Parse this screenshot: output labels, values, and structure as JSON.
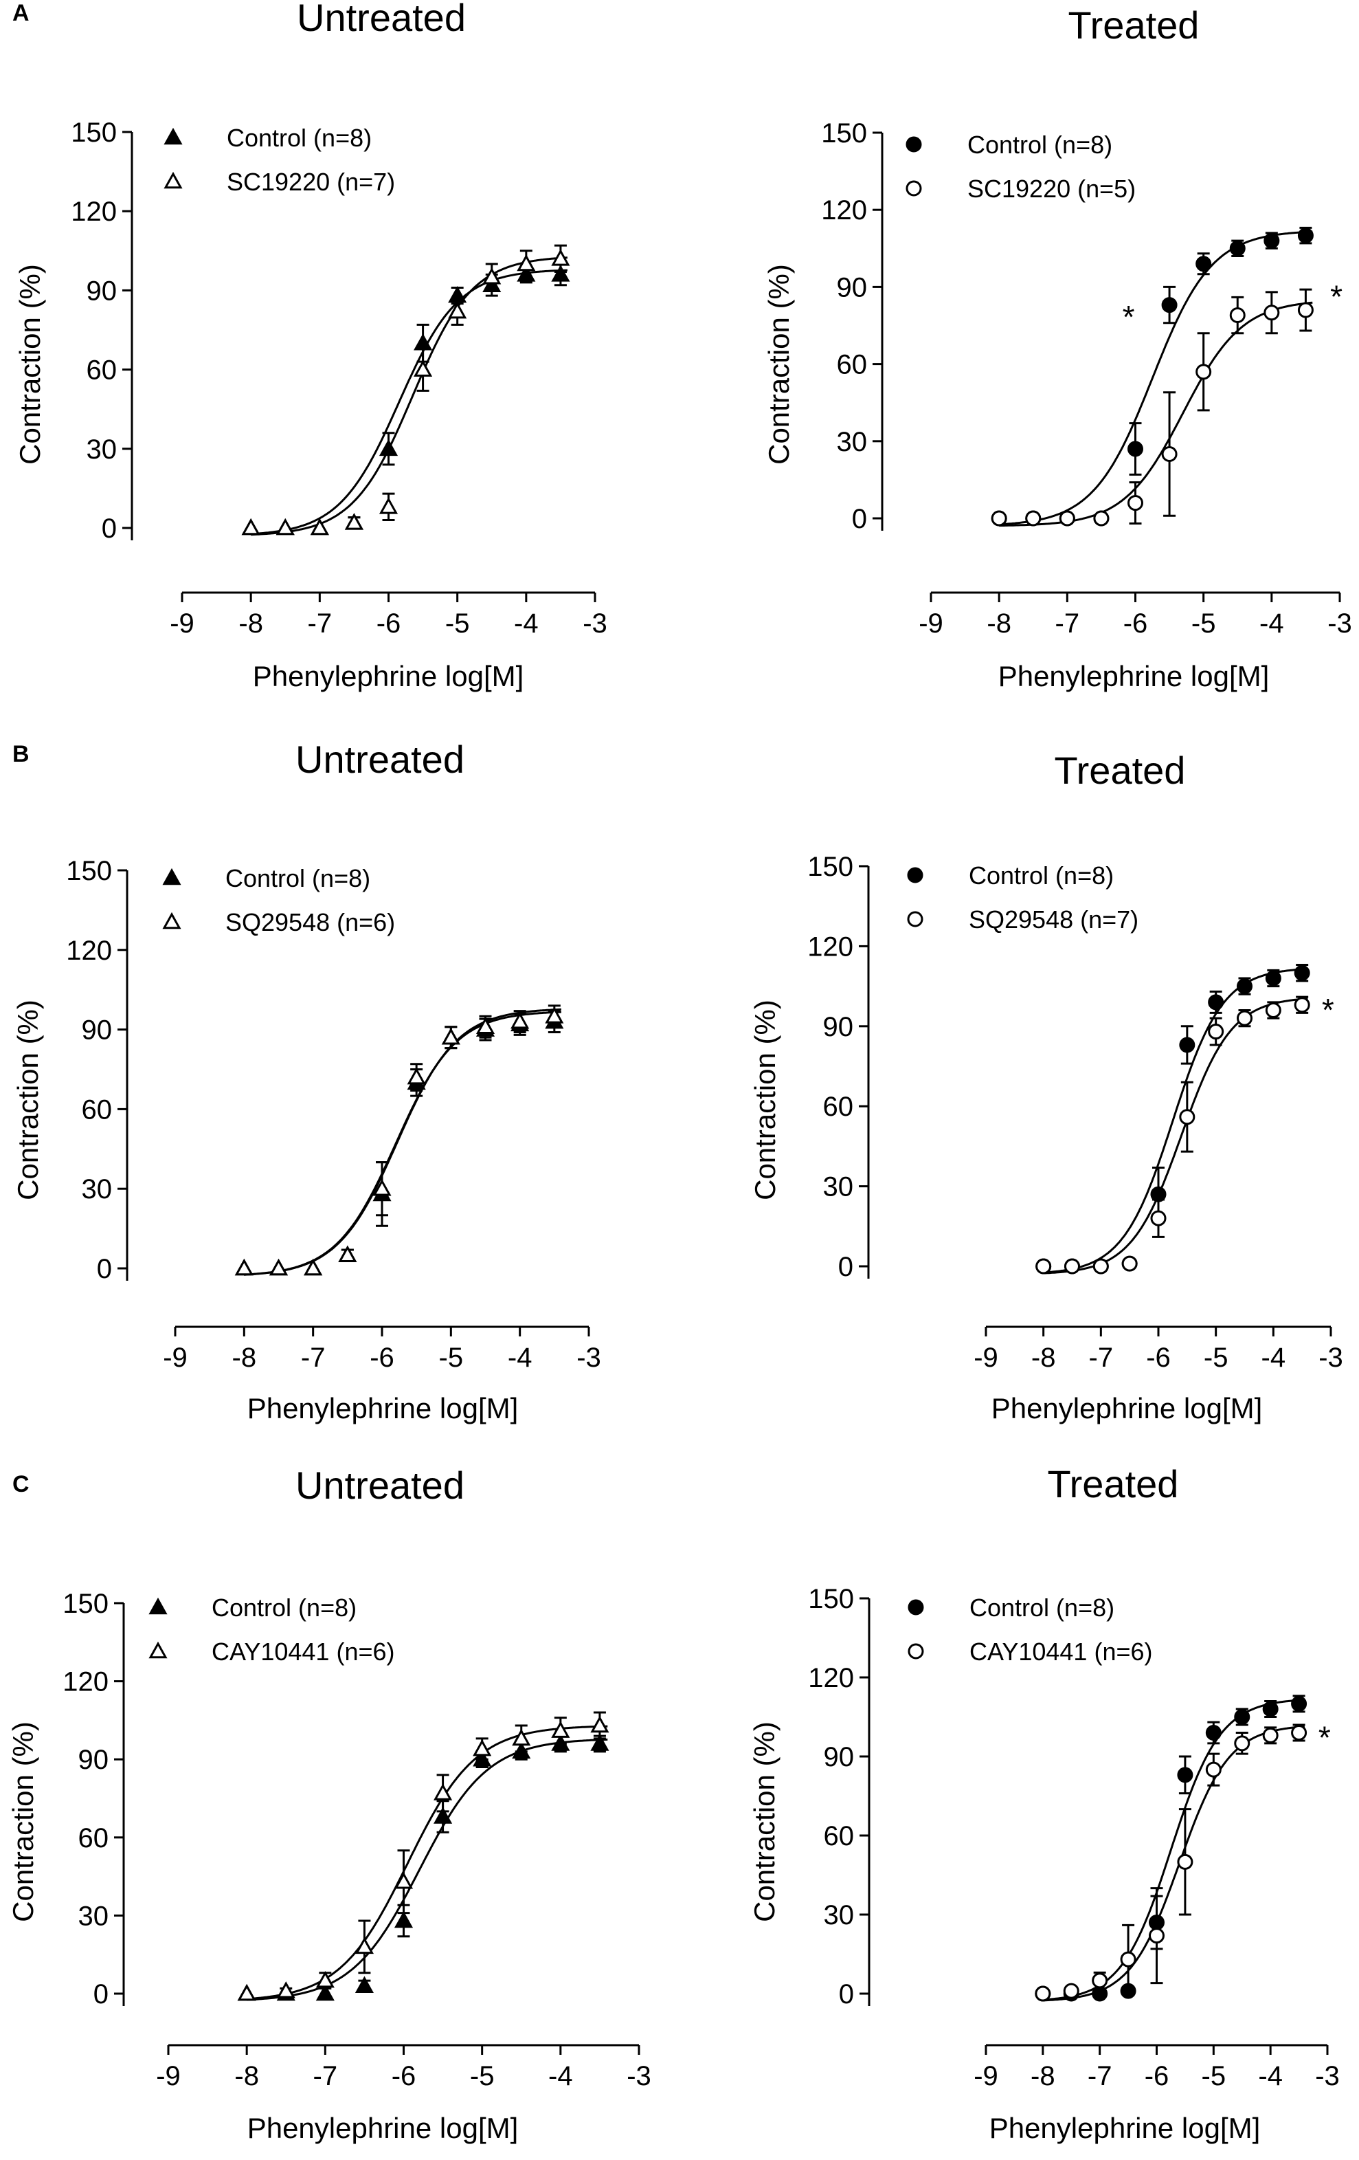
{
  "chart_data": [
    {
      "panel_label": "A",
      "title": "Untreated",
      "type": "scatter",
      "xlabel": "Phenylephrine log[M]",
      "ylabel": "Contraction (%)",
      "xlim": [
        -9,
        -3
      ],
      "ylim": [
        0,
        150
      ],
      "xticks": [
        "-9",
        "-8",
        "-7",
        "-6",
        "-5",
        "-4",
        "-3"
      ],
      "yticks": [
        "0",
        "30",
        "60",
        "90",
        "120",
        "150"
      ],
      "legend_position": "top-left",
      "significance_marks": [],
      "series": [
        {
          "name": "Control (n=8)",
          "marker": "triangle-filled",
          "x": [
            -8,
            -7.5,
            -7,
            -6.5,
            -6,
            -5.5,
            -5,
            -4.5,
            -4,
            -3.5
          ],
          "y": [
            0,
            0,
            0,
            2,
            30,
            70,
            88,
            92,
            96,
            96
          ],
          "err": [
            0,
            0,
            0,
            2,
            6,
            7,
            3,
            4,
            3,
            4
          ],
          "fit": {
            "bottom": -3,
            "top": 98,
            "logEC50": -5.85,
            "hill": 1
          }
        },
        {
          "name": "SC19220 (n=7)",
          "marker": "triangle-open",
          "x": [
            -8,
            -7.5,
            -7,
            -6.5,
            -6,
            -5.5,
            -5,
            -4.5,
            -4,
            -3.5
          ],
          "y": [
            0,
            0,
            0,
            2,
            8,
            60,
            82,
            95,
            100,
            102
          ],
          "err": [
            0,
            0,
            0,
            2,
            5,
            8,
            5,
            5,
            5,
            5
          ],
          "fit": {
            "bottom": -3,
            "top": 103,
            "logEC50": -5.65,
            "hill": 1
          }
        }
      ]
    },
    {
      "panel_label": "",
      "title": "Treated",
      "type": "scatter",
      "xlabel": "Phenylephrine log[M]",
      "ylabel": "Contraction (%)",
      "xlim": [
        -9,
        -3
      ],
      "ylim": [
        0,
        150
      ],
      "xticks": [
        "-9",
        "-8",
        "-7",
        "-6",
        "-5",
        "-4",
        "-3"
      ],
      "yticks": [
        "0",
        "30",
        "60",
        "90",
        "120",
        "150"
      ],
      "legend_position": "top-left",
      "significance_marks": [
        {
          "x": -6.1,
          "y": 74
        },
        {
          "x": -3.05,
          "y": 82
        }
      ],
      "series": [
        {
          "name": "Control (n=8)",
          "marker": "circle-filled",
          "x": [
            -8,
            -7.5,
            -7,
            -6.5,
            -6,
            -5.5,
            -5,
            -4.5,
            -4,
            -3.5
          ],
          "y": [
            0,
            0,
            0,
            0,
            27,
            83,
            99,
            105,
            108,
            110
          ],
          "err": [
            0,
            0,
            0,
            0,
            10,
            7,
            4,
            3,
            3,
            3
          ],
          "fit": {
            "bottom": -3,
            "top": 112,
            "logEC50": -5.75,
            "hill": 1
          }
        },
        {
          "name": "SC19220 (n=5)",
          "marker": "circle-open",
          "x": [
            -8,
            -7.5,
            -7,
            -6.5,
            -6,
            -5.5,
            -5,
            -4.5,
            -4,
            -3.5
          ],
          "y": [
            0,
            0,
            0,
            0,
            6,
            25,
            57,
            79,
            80,
            81
          ],
          "err": [
            0,
            0,
            0,
            0,
            8,
            24,
            15,
            7,
            8,
            8
          ],
          "fit": {
            "bottom": -3,
            "top": 85,
            "logEC50": -5.3,
            "hill": 1
          }
        }
      ]
    },
    {
      "panel_label": "B",
      "title": "Untreated",
      "type": "scatter",
      "xlabel": "Phenylephrine log[M]",
      "ylabel": "Contraction (%)",
      "xlim": [
        -9,
        -3
      ],
      "ylim": [
        0,
        150
      ],
      "xticks": [
        "-9",
        "-8",
        "-7",
        "-6",
        "-5",
        "-4",
        "-3"
      ],
      "yticks": [
        "0",
        "30",
        "60",
        "90",
        "120",
        "150"
      ],
      "legend_position": "top-left",
      "significance_marks": [],
      "series": [
        {
          "name": "Control (n=8)",
          "marker": "triangle-filled",
          "x": [
            -8,
            -7.5,
            -7,
            -6.5,
            -6,
            -5.5,
            -5,
            -4.5,
            -4,
            -3.5
          ],
          "y": [
            0,
            0,
            0,
            5,
            28,
            70,
            87,
            90,
            92,
            93
          ],
          "err": [
            0,
            0,
            0,
            2,
            12,
            5,
            4,
            4,
            4,
            4
          ],
          "fit": {
            "bottom": -3,
            "top": 97,
            "logEC50": -5.8,
            "hill": 1
          }
        },
        {
          "name": "SQ29548 (n=6)",
          "marker": "triangle-open",
          "x": [
            -8,
            -7.5,
            -7,
            -6.5,
            -6,
            -5.5,
            -5,
            -4.5,
            -4,
            -3.5
          ],
          "y": [
            0,
            0,
            0,
            5,
            30,
            72,
            87,
            91,
            93,
            95
          ],
          "err": [
            0,
            0,
            0,
            2,
            10,
            5,
            4,
            4,
            4,
            4
          ],
          "fit": {
            "bottom": -3,
            "top": 98,
            "logEC50": -5.78,
            "hill": 1
          }
        }
      ]
    },
    {
      "panel_label": "",
      "title": "Treated",
      "type": "scatter",
      "xlabel": "Phenylephrine log[M]",
      "ylabel": "Contraction (%)",
      "xlim": [
        -9,
        -3
      ],
      "ylim": [
        0,
        150
      ],
      "xticks": [
        "-9",
        "-8",
        "-7",
        "-6",
        "-5",
        "-4",
        "-3"
      ],
      "yticks": [
        "0",
        "30",
        "60",
        "90",
        "120",
        "150"
      ],
      "legend_position": "top-left",
      "significance_marks": [
        {
          "x": -3.05,
          "y": 92
        }
      ],
      "series": [
        {
          "name": "Control (n=8)",
          "marker": "circle-filled",
          "x": [
            -8,
            -7.5,
            -7,
            -6.5,
            -6,
            -5.5,
            -5,
            -4.5,
            -4,
            -3.5
          ],
          "y": [
            0,
            0,
            0,
            1,
            27,
            83,
            99,
            105,
            108,
            110
          ],
          "err": [
            0,
            0,
            0,
            0,
            10,
            7,
            4,
            3,
            3,
            3
          ],
          "fit": {
            "bottom": -3,
            "top": 112,
            "logEC50": -5.75,
            "hill": 1
          }
        },
        {
          "name": "SQ29548 (n=7)",
          "marker": "circle-open",
          "x": [
            -8,
            -7.5,
            -7,
            -6.5,
            -6,
            -5.5,
            -5,
            -4.5,
            -4,
            -3.5
          ],
          "y": [
            0,
            0,
            0,
            1,
            18,
            56,
            88,
            93,
            96,
            98
          ],
          "err": [
            0,
            0,
            0,
            0,
            7,
            13,
            5,
            3,
            3,
            3
          ],
          "fit": {
            "bottom": -3,
            "top": 101,
            "logEC50": -5.6,
            "hill": 1
          }
        }
      ]
    },
    {
      "panel_label": "C",
      "title": "Untreated",
      "type": "scatter",
      "xlabel": "Phenylephrine log[M]",
      "ylabel": "Contraction (%)",
      "xlim": [
        -9,
        -3
      ],
      "ylim": [
        0,
        150
      ],
      "xticks": [
        "-9",
        "-8",
        "-7",
        "-6",
        "-5",
        "-4",
        "-3"
      ],
      "yticks": [
        "0",
        "30",
        "60",
        "90",
        "120",
        "150"
      ],
      "legend_position": "top-left",
      "significance_marks": [],
      "series": [
        {
          "name": "Control (n=8)",
          "marker": "triangle-filled",
          "x": [
            -8,
            -7.5,
            -7,
            -6.5,
            -6,
            -5.5,
            -5,
            -4.5,
            -4,
            -3.5
          ],
          "y": [
            0,
            0,
            0,
            3,
            28,
            68,
            90,
            93,
            96,
            96
          ],
          "err": [
            0,
            0,
            0,
            2,
            6,
            6,
            3,
            3,
            3,
            3
          ],
          "fit": {
            "bottom": -3,
            "top": 98,
            "logEC50": -5.8,
            "hill": 1
          }
        },
        {
          "name": "CAY10441 (n=6)",
          "marker": "triangle-open",
          "x": [
            -8,
            -7.5,
            -7,
            -6.5,
            -6,
            -5.5,
            -5,
            -4.5,
            -4,
            -3.5
          ],
          "y": [
            0,
            1,
            5,
            18,
            43,
            77,
            94,
            98,
            101,
            103
          ],
          "err": [
            0,
            1,
            3,
            10,
            12,
            7,
            4,
            5,
            5,
            5
          ],
          "fit": {
            "bottom": -3,
            "top": 103,
            "logEC50": -5.95,
            "hill": 1
          }
        }
      ]
    },
    {
      "panel_label": "",
      "title": "Treated",
      "type": "scatter",
      "xlabel": "Phenylephrine log[M]",
      "ylabel": "Contraction (%)",
      "xlim": [
        -9,
        -3
      ],
      "ylim": [
        0,
        150
      ],
      "xticks": [
        "-9",
        "-8",
        "-7",
        "-6",
        "-5",
        "-4",
        "-3"
      ],
      "yticks": [
        "0",
        "30",
        "60",
        "90",
        "120",
        "150"
      ],
      "legend_position": "top-left",
      "significance_marks": [
        {
          "x": -3.05,
          "y": 93
        }
      ],
      "series": [
        {
          "name": "Control (n=8)",
          "marker": "circle-filled",
          "x": [
            -8,
            -7.5,
            -7,
            -6.5,
            -6,
            -5.5,
            -5,
            -4.5,
            -4,
            -3.5
          ],
          "y": [
            0,
            0,
            0,
            1,
            27,
            83,
            99,
            105,
            108,
            110
          ],
          "err": [
            0,
            0,
            0,
            0,
            10,
            7,
            4,
            3,
            3,
            3
          ],
          "fit": {
            "bottom": -3,
            "top": 112,
            "logEC50": -5.75,
            "hill": 1
          }
        },
        {
          "name": "CAY10441 (n=6)",
          "marker": "circle-open",
          "x": [
            -8,
            -7.5,
            -7,
            -6.5,
            -6,
            -5.5,
            -5,
            -4.5,
            -4,
            -3.5
          ],
          "y": [
            0,
            1,
            5,
            13,
            22,
            50,
            85,
            95,
            98,
            99
          ],
          "err": [
            0,
            1,
            3,
            13,
            18,
            20,
            6,
            4,
            3,
            3
          ],
          "fit": {
            "bottom": -3,
            "top": 102,
            "logEC50": -5.6,
            "hill": 1
          }
        }
      ]
    }
  ]
}
